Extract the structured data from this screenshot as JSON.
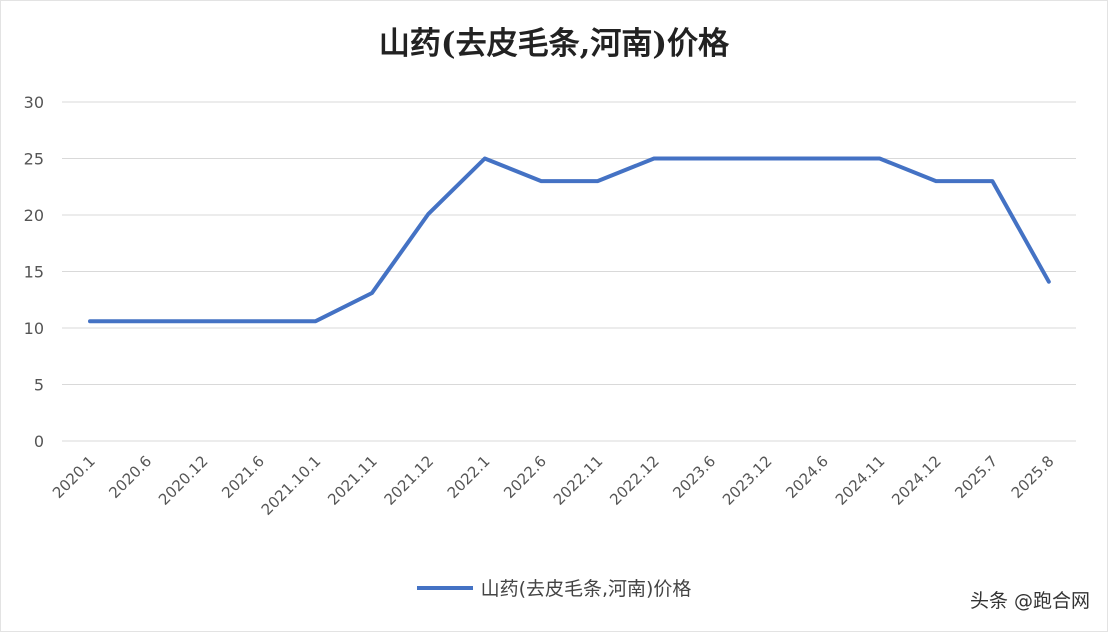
{
  "chart_data": {
    "type": "line",
    "title": "山药(去皮毛条,河南)价格",
    "categories": [
      "2020.1",
      "2020.6",
      "2020.12",
      "2021.6",
      "2021.10.1",
      "2021.11",
      "2021.12",
      "2022.1",
      "2022.6",
      "2022.11",
      "2022.12",
      "2023.6",
      "2023.12",
      "2024.6",
      "2024.11",
      "2024.12",
      "2025.7",
      "2025.8"
    ],
    "series": [
      {
        "name": "山药(去皮毛条,河南)价格",
        "values": [
          10.6,
          10.6,
          10.6,
          10.6,
          10.6,
          13.1,
          20.1,
          25,
          23,
          23,
          25,
          25,
          25,
          25,
          25,
          23,
          23,
          14.1
        ]
      }
    ],
    "xlabel": "",
    "ylabel": "",
    "ylim": [
      0,
      30
    ],
    "yticks": [
      "0",
      "5",
      "10",
      "15",
      "20",
      "25",
      "30"
    ],
    "grid": true,
    "legend_position": "bottom",
    "colors": {
      "line": "#4472c4",
      "grid": "#d9d9d9"
    }
  },
  "watermark": "头条 @跑合网"
}
